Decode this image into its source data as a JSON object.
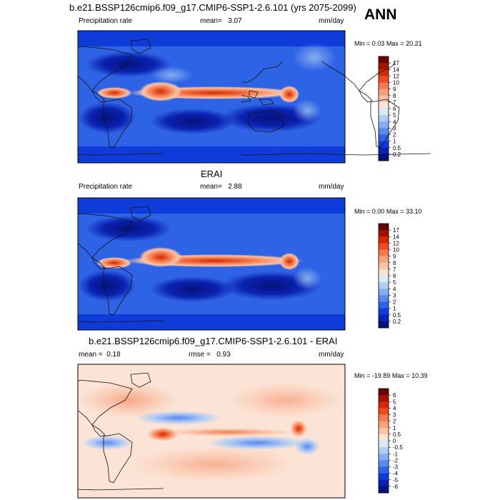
{
  "page": {
    "season_label": "ANN"
  },
  "chart_data": [
    {
      "type": "heatmap",
      "title": "b.e21.BSSP126cmip6.f09_g17.CMIP6-SSP1-2.6.101 (yrs 2075-2099)",
      "variable_label": "Precipitation rate",
      "units": "mm/day",
      "mean_label": "mean=",
      "mean": "3.07",
      "min_label": "Min =",
      "min": "0.03",
      "max_label": "Max =",
      "max": "20.21",
      "colorbar": {
        "labels": [
          "17",
          "14",
          "12",
          "10",
          "9",
          "8",
          "7",
          "6",
          "5",
          "4",
          "3",
          "2",
          "1",
          "0.5",
          "0.2"
        ],
        "colors": [
          "#670000",
          "#a31200",
          "#d22a00",
          "#ef4b23",
          "#f57c50",
          "#f8a07a",
          "#fac4a8",
          "#fbe4d6",
          "#dbe8f8",
          "#b3ccf4",
          "#86adef",
          "#5889eb",
          "#2f63e6",
          "#0f3cd9",
          "#0a22b0",
          "#06127b"
        ]
      }
    },
    {
      "type": "heatmap",
      "title": "ERAI",
      "variable_label": "Precipitation rate",
      "units": "mm/day",
      "mean_label": "mean=",
      "mean": "2.88",
      "min_label": "Min =",
      "min": "0.00",
      "max_label": "Max =",
      "max": "33.10",
      "colorbar": {
        "labels": [
          "17",
          "14",
          "12",
          "10",
          "9",
          "8",
          "7",
          "6",
          "5",
          "4",
          "3",
          "2",
          "1",
          "0.5",
          "0.2"
        ],
        "colors": [
          "#670000",
          "#a31200",
          "#d22a00",
          "#ef4b23",
          "#f57c50",
          "#f8a07a",
          "#fac4a8",
          "#fbe4d6",
          "#dbe8f8",
          "#b3ccf4",
          "#86adef",
          "#5889eb",
          "#2f63e6",
          "#0f3cd9",
          "#0a22b0",
          "#06127b"
        ]
      }
    },
    {
      "type": "heatmap",
      "title": "b.e21.BSSP126cmip6.f09_g17.CMIP6-SSP1-2.6.101 - ERAI",
      "units": "mm/day",
      "mean_label": "mean =",
      "mean": "0.18",
      "rmse_label": "rmse =",
      "rmse": "0.93",
      "min_label": "Min =",
      "min": "-19.89",
      "max_label": "Max =",
      "max": "10.39",
      "colorbar": {
        "labels": [
          "6",
          "5",
          "4",
          "3",
          "2",
          "1",
          "0.5",
          "0",
          "-0.5",
          "-1",
          "-2",
          "-3",
          "-4",
          "-5",
          "-6"
        ],
        "colors": [
          "#670000",
          "#a31200",
          "#d22a00",
          "#ef4b23",
          "#f57c50",
          "#f8a07a",
          "#fac4a8",
          "#fbe4d6",
          "#dbe8f8",
          "#b3ccf4",
          "#86adef",
          "#5889eb",
          "#2f63e6",
          "#0f3cd9",
          "#0a22b0",
          "#06127b"
        ]
      }
    }
  ]
}
